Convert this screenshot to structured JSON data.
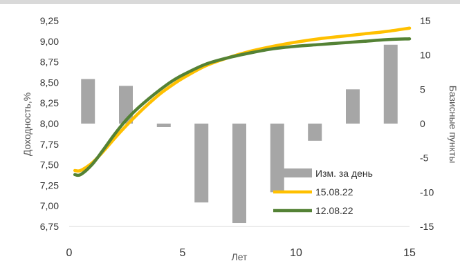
{
  "chart_data": {
    "type": "line",
    "xlabel": "Лет",
    "ylabel_left": "Доходность,%",
    "ylabel_right": "Базисные пункты",
    "xlim": [
      0,
      15
    ],
    "ylim_left": [
      6.75,
      9.25
    ],
    "ylim_right": [
      -15,
      15
    ],
    "x_ticks": [
      "0",
      "5",
      "10",
      "15"
    ],
    "y_ticks_left": [
      "9,25",
      "9,00",
      "8,75",
      "8,50",
      "8,25",
      "8,00",
      "7,75",
      "7,50",
      "7,25",
      "7,00",
      "6,75"
    ],
    "y_ticks_right": [
      "15",
      "10",
      "5",
      "0",
      "-5",
      "-10",
      "-15"
    ],
    "grid": false,
    "legend_position": "bottom-right",
    "series": [
      {
        "name": "Изм. за день",
        "type": "bar",
        "axis": "right",
        "color": "#a6a6a6",
        "x": [
          0.83,
          2.5,
          4.17,
          5.83,
          7.5,
          9.17,
          10.83,
          12.5,
          14.17
        ],
        "values": [
          6.5,
          5.5,
          -0.5,
          -11.5,
          -14.5,
          -10,
          -2.5,
          5,
          11.5
        ]
      },
      {
        "name": "15.08.22",
        "type": "line",
        "axis": "left",
        "color": "#ffc000",
        "x": [
          0.25,
          0.5,
          1,
          1.5,
          2,
          2.5,
          3,
          3.5,
          4,
          4.5,
          5,
          6,
          7,
          8,
          9,
          10,
          11,
          12,
          13,
          14,
          15
        ],
        "values": [
          7.43,
          7.43,
          7.52,
          7.66,
          7.82,
          7.97,
          8.11,
          8.24,
          8.36,
          8.46,
          8.55,
          8.7,
          8.8,
          8.88,
          8.94,
          8.99,
          9.03,
          9.06,
          9.09,
          9.12,
          9.16
        ]
      },
      {
        "name": "12.08.22",
        "type": "line",
        "axis": "left",
        "color": "#548235",
        "x": [
          0.25,
          0.5,
          1,
          1.5,
          2,
          2.5,
          3,
          3.5,
          4,
          4.5,
          5,
          6,
          7,
          8,
          9,
          10,
          11,
          12,
          13,
          14,
          15
        ],
        "values": [
          7.38,
          7.38,
          7.5,
          7.68,
          7.87,
          8.04,
          8.18,
          8.3,
          8.41,
          8.51,
          8.59,
          8.72,
          8.8,
          8.86,
          8.91,
          8.94,
          8.96,
          8.98,
          9.0,
          9.02,
          9.03
        ]
      }
    ]
  },
  "colors": {
    "top_band": "#d9d9d9",
    "axis_line": "#d9d9d9"
  }
}
